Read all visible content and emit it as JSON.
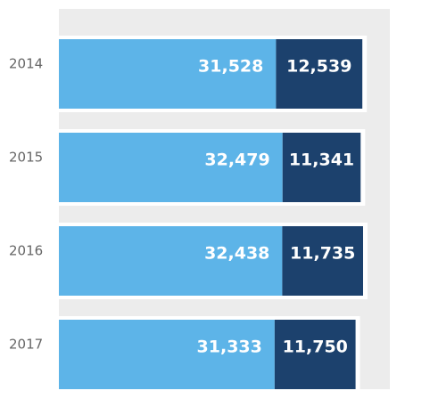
{
  "chart_data": {
    "type": "stacked-bar",
    "categories": [
      "2014",
      "2015",
      "2016",
      "2017"
    ],
    "series": [
      {
        "color": "#5db4e8",
        "values": [
          31528,
          32479,
          32438,
          31333
        ],
        "value_labels": [
          "31,528",
          "32,479",
          "32,438",
          "31,333"
        ]
      },
      {
        "color": "#1c416d",
        "values": [
          12539,
          11341,
          11735,
          11750
        ],
        "value_labels": [
          "12,539",
          "11,341",
          "11,735",
          "11,750"
        ]
      }
    ],
    "background": "#ececec"
  }
}
